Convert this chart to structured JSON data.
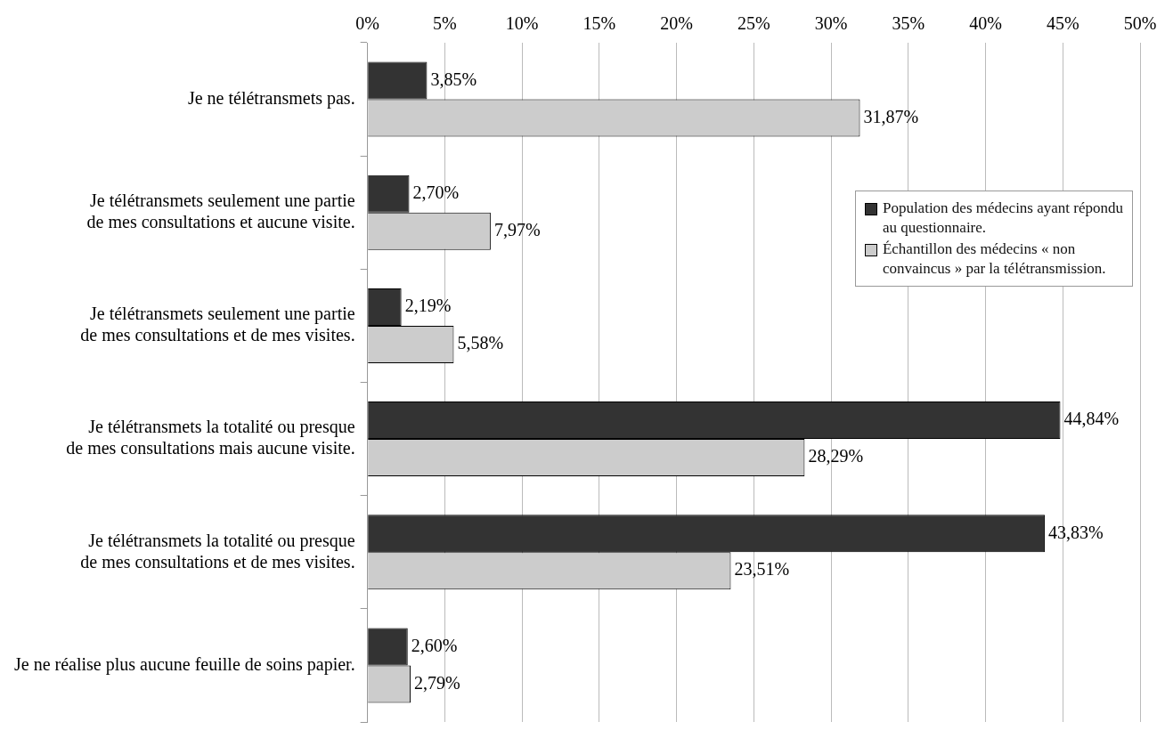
{
  "chart_data": {
    "type": "bar",
    "orientation": "horizontal",
    "categories": [
      "Je ne télétransmets pas.",
      "Je télétransmets seulement une partie\nde mes consultations et aucune visite.",
      "Je télétransmets seulement une partie\nde mes consultations et de mes visites.",
      "Je télétransmets la totalité ou presque\nde mes consultations mais aucune visite.",
      "Je télétransmets la totalité ou presque\nde mes consultations et de mes visites.",
      "Je ne réalise plus aucune feuille de soins papier."
    ],
    "series": [
      {
        "name": "Population des médecins ayant répondu\nau questionnaire.",
        "color": "#333333",
        "values": [
          3.85,
          2.7,
          2.19,
          44.84,
          43.83,
          2.6
        ],
        "value_labels": [
          "3,85%",
          "2,70%",
          "2,19%",
          "44,84%",
          "43,83%",
          "2,60%"
        ]
      },
      {
        "name": "Échantillon des médecins « non\nconvaincus » par la télétransmission.",
        "color": "#cccccc",
        "values": [
          31.87,
          7.97,
          5.58,
          28.29,
          23.51,
          2.79
        ],
        "value_labels": [
          "31,87%",
          "7,97%",
          "5,58%",
          "28,29%",
          "23,51%",
          "2,79%"
        ]
      }
    ],
    "xlim": [
      0,
      50
    ],
    "xticks": [
      {
        "value": 0,
        "label": "0%"
      },
      {
        "value": 5,
        "label": "5%"
      },
      {
        "value": 10,
        "label": "10%"
      },
      {
        "value": 15,
        "label": "15%"
      },
      {
        "value": 20,
        "label": "20%"
      },
      {
        "value": 25,
        "label": "25%"
      },
      {
        "value": 30,
        "label": "30%"
      },
      {
        "value": 35,
        "label": "35%"
      },
      {
        "value": 40,
        "label": "40%"
      },
      {
        "value": 45,
        "label": "45%"
      },
      {
        "value": 50,
        "label": "50%"
      }
    ],
    "grid": "x",
    "legend": "right"
  }
}
